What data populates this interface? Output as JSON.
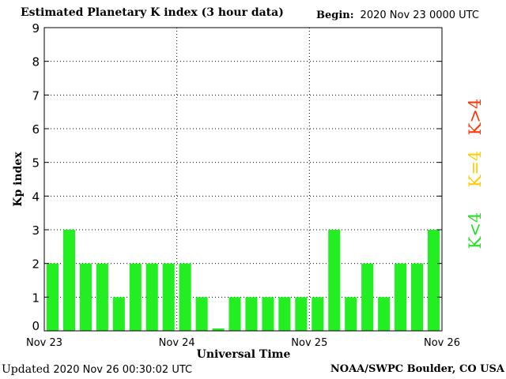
{
  "header": {
    "title": "Estimated Planetary K index (3 hour data)",
    "begin_label": "Begin:",
    "begin_value": "2020 Nov 23 0000 UTC"
  },
  "footer": {
    "updated_label": "Updated",
    "updated_value": "2020 Nov 26 00:30:02 UTC",
    "source": "NOAA/SWPC Boulder, CO USA"
  },
  "legend": {
    "below": {
      "text": "K<4",
      "color": "#22dd22"
    },
    "equal": {
      "text": "K=4",
      "color": "#ffcc00"
    },
    "above": {
      "text": "K>4",
      "color": "#ff3300"
    }
  },
  "chart_data": {
    "type": "bar",
    "title": "Estimated Planetary K index (3 hour data)",
    "xlabel": "Universal Time",
    "ylabel": "Kp index",
    "ylim": [
      0,
      9
    ],
    "yticks": [
      "0",
      "1",
      "2",
      "3",
      "4",
      "5",
      "6",
      "7",
      "8",
      "9"
    ],
    "xtick_labels": [
      "Nov 23",
      "Nov 24",
      "Nov 25",
      "Nov 26"
    ],
    "grid": true,
    "bar_color": "#22ee22",
    "values": [
      2,
      3,
      2,
      2,
      1,
      2,
      2,
      2,
      2,
      1,
      0.07,
      1,
      1,
      1,
      1,
      1,
      1,
      3,
      1,
      2,
      1,
      2,
      2,
      3
    ]
  }
}
